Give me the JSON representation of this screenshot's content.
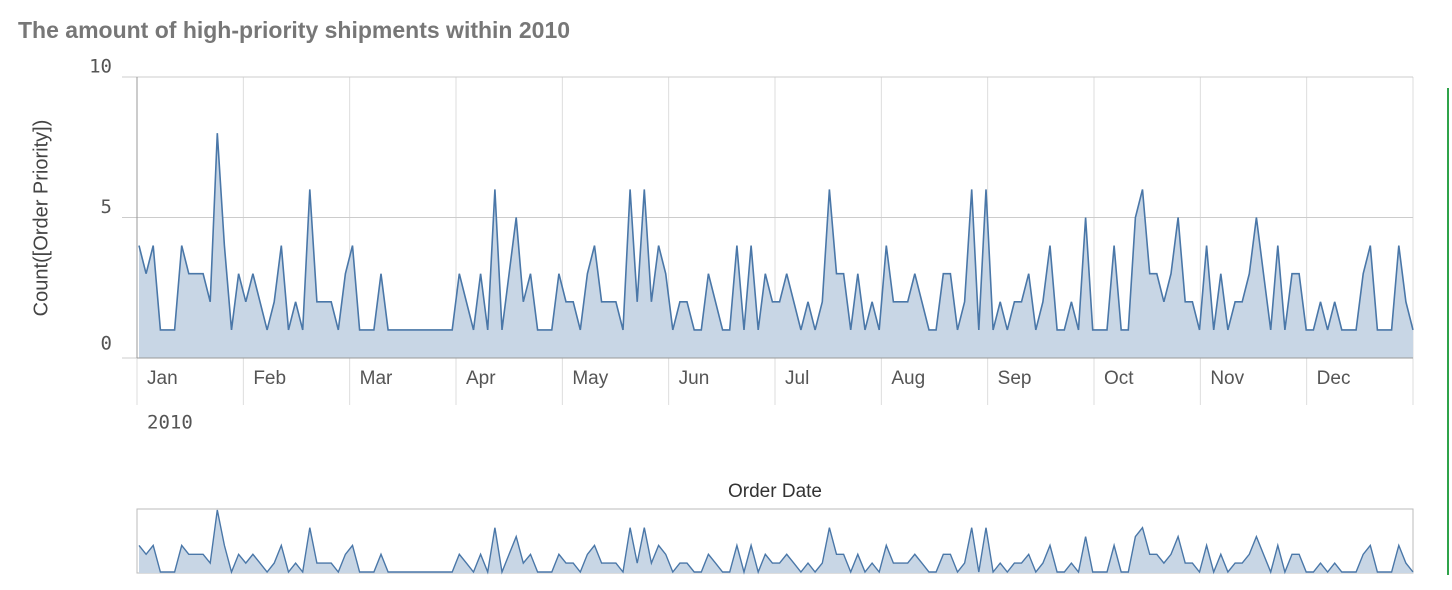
{
  "chart_data": {
    "type": "area",
    "title": "The amount of high-priority shipments within 2010",
    "y_label": "Count([Order Priority])",
    "x_label": "Order Date",
    "year": "2010",
    "months": [
      "Jan",
      "Feb",
      "Mar",
      "Apr",
      "May",
      "Jun",
      "Jul",
      "Aug",
      "Sep",
      "Oct",
      "Nov",
      "Dec"
    ],
    "values": [
      4,
      3,
      4,
      1,
      1,
      1,
      4,
      3,
      3,
      3,
      2,
      8,
      4,
      1,
      3,
      2,
      3,
      2,
      1,
      2,
      4,
      1,
      2,
      1,
      6,
      2,
      2,
      2,
      1,
      3,
      4,
      1,
      1,
      1,
      3,
      1,
      1,
      1,
      1,
      1,
      1,
      1,
      1,
      1,
      1,
      3,
      2,
      1,
      3,
      1,
      6,
      1,
      3,
      5,
      2,
      3,
      1,
      1,
      1,
      3,
      2,
      2,
      1,
      3,
      4,
      2,
      2,
      2,
      1,
      6,
      2,
      6,
      2,
      4,
      3,
      1,
      2,
      2,
      1,
      1,
      3,
      2,
      1,
      1,
      4,
      1,
      4,
      1,
      3,
      2,
      2,
      3,
      2,
      1,
      2,
      1,
      2,
      6,
      3,
      3,
      1,
      3,
      1,
      2,
      1,
      4,
      2,
      2,
      2,
      3,
      2,
      1,
      1,
      3,
      3,
      1,
      2,
      6,
      1,
      6,
      1,
      2,
      1,
      2,
      2,
      3,
      1,
      2,
      4,
      1,
      1,
      2,
      1,
      5,
      1,
      1,
      1,
      4,
      1,
      1,
      5,
      6,
      3,
      3,
      2,
      3,
      5,
      2,
      2,
      1,
      4,
      1,
      3,
      1,
      2,
      2,
      3,
      5,
      3,
      1,
      4,
      1,
      3,
      3,
      1,
      1,
      2,
      1,
      2,
      1,
      1,
      1,
      3,
      4,
      1,
      1,
      1,
      4,
      2,
      1
    ],
    "ylim": [
      0,
      10
    ],
    "yticks": [
      0,
      5,
      10
    ],
    "grid": true,
    "color": "#4a77a8",
    "fill_color": "#c8d6e5"
  }
}
